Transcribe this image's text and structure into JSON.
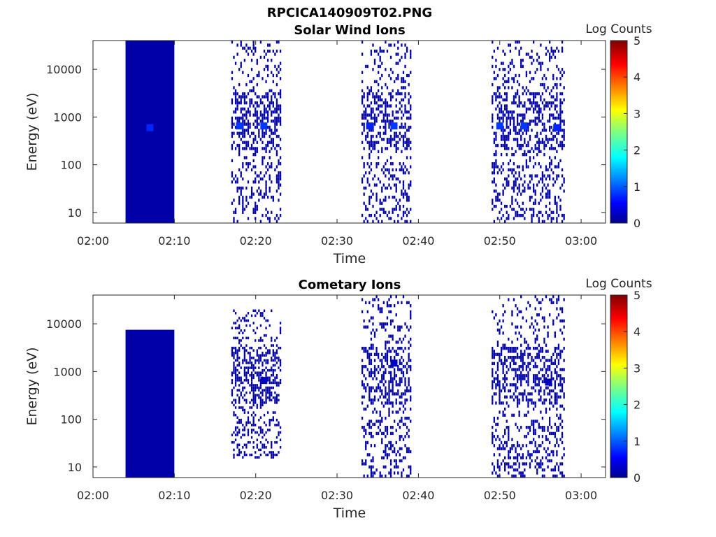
{
  "figure": {
    "title": "RPCICA140909T02.PNG"
  },
  "colors": {
    "cell": "#00008f",
    "hot": "#0a3ee6",
    "frame": "#262626"
  },
  "chart_data": [
    {
      "type": "heatmap",
      "title": "Solar Wind Ions",
      "xlabel": "Time",
      "ylabel": "Energy (eV)",
      "x_scale": "time",
      "y_scale": "log",
      "xlim": [
        "02:00",
        "03:03"
      ],
      "ylim": [
        6,
        40000
      ],
      "x_ticks": [
        "02:00",
        "02:10",
        "02:20",
        "02:30",
        "02:40",
        "02:50",
        "03:00"
      ],
      "y_ticks": [
        "10",
        "100",
        "1000",
        "10000"
      ],
      "colorbar": {
        "label": "Log Counts",
        "min": 0,
        "max": 5,
        "ticks": [
          "0",
          "1",
          "2",
          "3",
          "4",
          "5"
        ],
        "colormap": "jet"
      },
      "blocks": [
        {
          "t0": "02:04",
          "t1": "02:10",
          "e0": 6,
          "e1": 40000,
          "log_counts": 0.2
        },
        {
          "t0": "02:17",
          "t1": "02:23",
          "e0": 6,
          "e1": 40000,
          "log_counts": 0.2,
          "sparse": true
        },
        {
          "t0": "02:33",
          "t1": "02:39",
          "e0": 6,
          "e1": 40000,
          "log_counts": 0.2,
          "sparse": true
        },
        {
          "t0": "02:49",
          "t1": "02:58",
          "e0": 6,
          "e1": 40000,
          "log_counts": 0.2,
          "sparse": true
        }
      ],
      "peaks": [
        {
          "t": "02:07",
          "e": 600,
          "log_counts": 0.8
        },
        {
          "t": "02:18",
          "e": 650,
          "log_counts": 0.9
        },
        {
          "t": "02:21",
          "e": 650,
          "log_counts": 0.9
        },
        {
          "t": "02:34",
          "e": 650,
          "log_counts": 0.8
        },
        {
          "t": "02:37",
          "e": 650,
          "log_counts": 0.9
        },
        {
          "t": "02:50",
          "e": 650,
          "log_counts": 0.9
        },
        {
          "t": "02:53",
          "e": 650,
          "log_counts": 0.9
        },
        {
          "t": "02:57",
          "e": 600,
          "log_counts": 0.8
        }
      ]
    },
    {
      "type": "heatmap",
      "title": "Cometary Ions",
      "xlabel": "Time",
      "ylabel": "Energy (eV)",
      "x_scale": "time",
      "y_scale": "log",
      "xlim": [
        "02:00",
        "03:03"
      ],
      "ylim": [
        6,
        40000
      ],
      "x_ticks": [
        "02:00",
        "02:10",
        "02:20",
        "02:30",
        "02:40",
        "02:50",
        "03:00"
      ],
      "y_ticks": [
        "10",
        "100",
        "1000",
        "10000"
      ],
      "colorbar": {
        "label": "Log Counts",
        "min": 0,
        "max": 5,
        "ticks": [
          "0",
          "1",
          "2",
          "3",
          "4",
          "5"
        ],
        "colormap": "jet"
      },
      "blocks": [
        {
          "t0": "02:04",
          "t1": "02:10",
          "e0": 6,
          "e1": 7500,
          "log_counts": 0.2
        },
        {
          "t0": "02:17",
          "t1": "02:23",
          "e0": 15,
          "e1": 20000,
          "log_counts": 0.2,
          "sparse": true
        },
        {
          "t0": "02:33",
          "t1": "02:39",
          "e0": 6,
          "e1": 40000,
          "log_counts": 0.2,
          "sparse": true
        },
        {
          "t0": "02:49",
          "t1": "02:58",
          "e0": 6,
          "e1": 40000,
          "log_counts": 0.2,
          "sparse": true
        }
      ],
      "peaks": [
        {
          "t": "02:21",
          "e": 650,
          "log_counts": 0.3
        },
        {
          "t": "02:37",
          "e": 1500,
          "log_counts": 0.3
        },
        {
          "t": "02:56",
          "e": 600,
          "log_counts": 0.3
        }
      ]
    }
  ]
}
